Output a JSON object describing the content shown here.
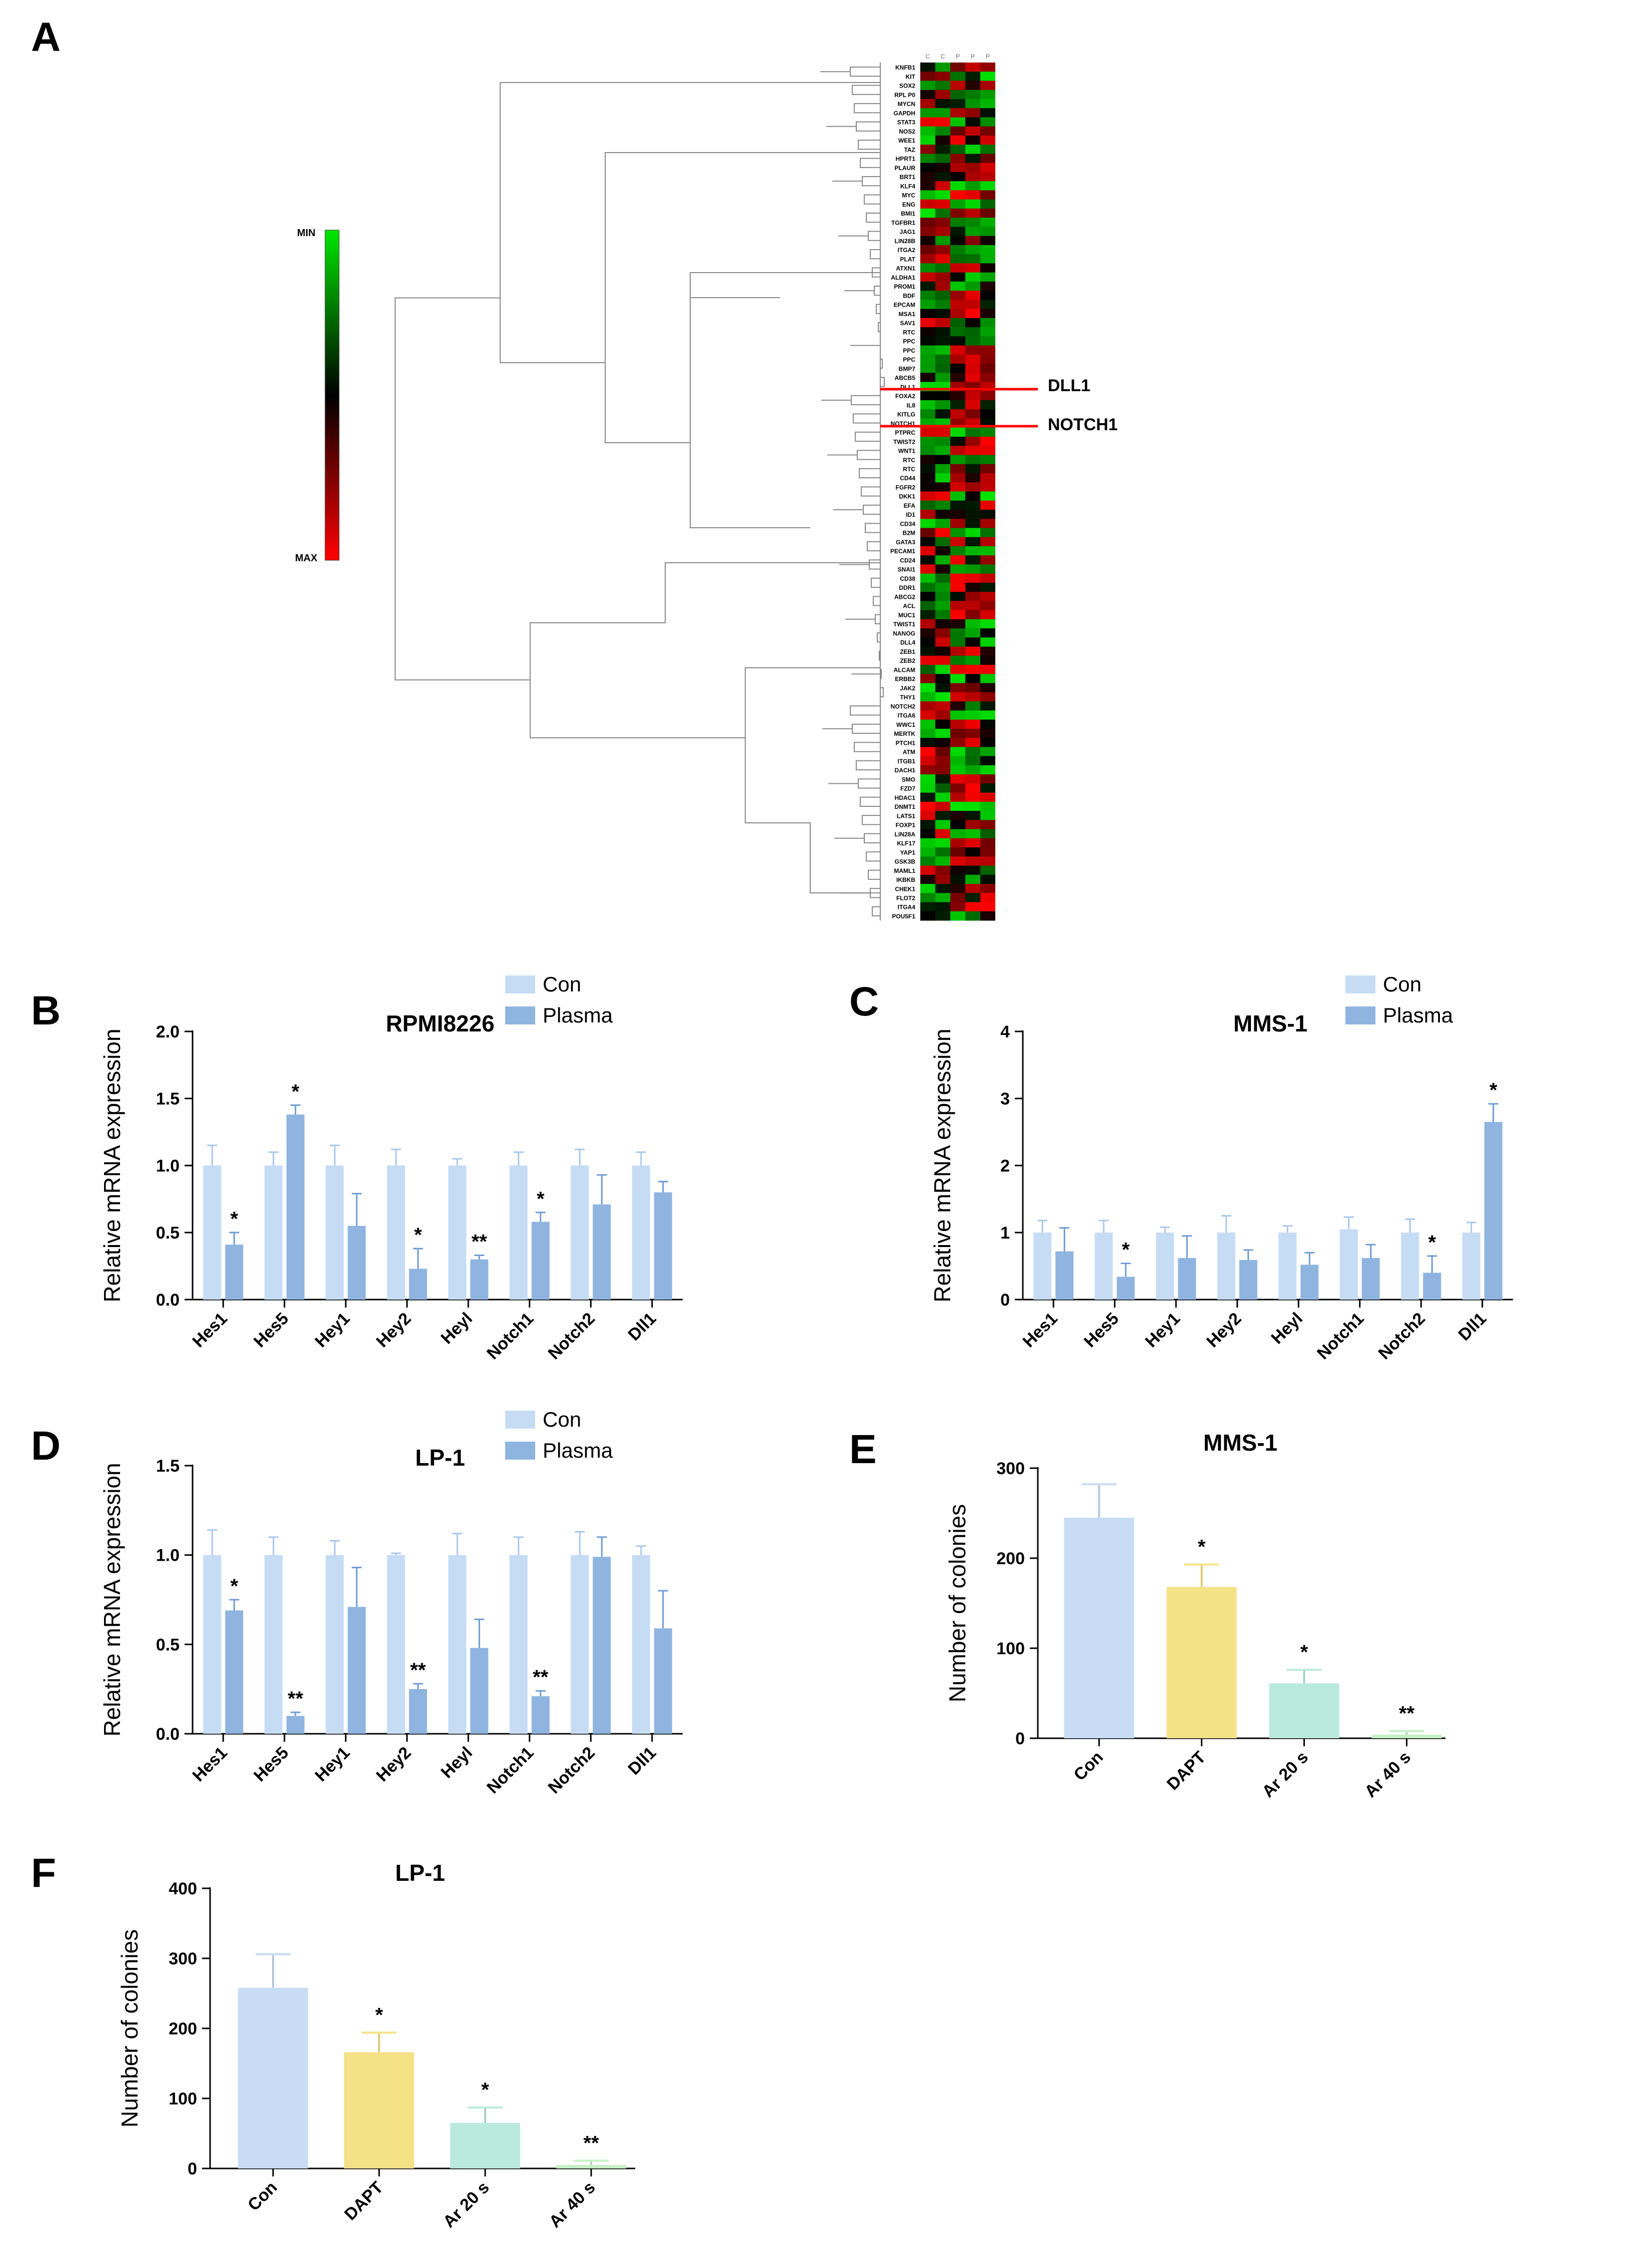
{
  "panels": {
    "A": "A",
    "B": "B",
    "C": "C",
    "D": "D",
    "E": "E",
    "F": "F"
  },
  "heatmap": {
    "scale_min": "MIN",
    "scale_max": "MAX",
    "columns": [
      "C",
      "C",
      "P",
      "P",
      "P"
    ],
    "highlights": [
      "DLL1",
      "NOTCH1"
    ],
    "genes": [
      "KNFB1",
      "KIT",
      "SOX2",
      "RPL P0",
      "MYCN",
      "GAPDH",
      "STAT3",
      "NOS2",
      "WEE1",
      "TAZ",
      "HPRT1",
      "PLAUR",
      "BRT1",
      "KLF4",
      "MYC",
      "ENG",
      "BMI1",
      "TGFBR1",
      "JAG1",
      "LIN28B",
      "ITGA2",
      "PLAT",
      "ATXN1",
      "ALDHA1",
      "PROM1",
      "BDF",
      "EPCAM",
      "MSA1",
      "SAV1",
      "RTC",
      "PPC",
      "PPC",
      "PPC",
      "BMP7",
      "ABCB5",
      "DLL1",
      "FOXA2",
      "IL8",
      "KITLG",
      "NOTCH1",
      "PTPRC",
      "TWIST2",
      "WNT1",
      "RTC",
      "RTC",
      "CD44",
      "FGFR2",
      "DKK1",
      "EFA",
      "ID1",
      "CD34",
      "B2M",
      "GATA3",
      "PECAM1",
      "CD24",
      "SNAI1",
      "CD38",
      "DDR1",
      "ABCG2",
      "ACL",
      "MUC1",
      "TWIST1",
      "NANOG",
      "DLL4",
      "ZEB1",
      "ZEB2",
      "ALCAM",
      "ERBB2",
      "JAK2",
      "THY1",
      "NOTCH2",
      "ITGA6",
      "WWC1",
      "MERTK",
      "PTCH1",
      "ATM",
      "ITGB1",
      "DACH1",
      "SMO",
      "FZD7",
      "HDAC1",
      "DNMT1",
      "LATS1",
      "FOXP1",
      "LIN28A",
      "KLF17",
      "YAP1",
      "GSK3B",
      "MAML1",
      "IKBKB",
      "CHEK1",
      "FLOT2",
      "ITGA4",
      "POU5F1"
    ]
  },
  "chart_data": [
    {
      "id": "B",
      "type": "bar",
      "title": "RPMI8226",
      "ylabel": "Relative mRNA expression",
      "categories": [
        "Hes1",
        "Hes5",
        "Hey1",
        "Hey2",
        "Heyl",
        "Notch1",
        "Notch2",
        "Dll1"
      ],
      "ylim": [
        0,
        2.0
      ],
      "yticks": [
        0.0,
        0.5,
        1.0,
        1.5,
        2.0
      ],
      "ytick_labels": [
        "0.0",
        "0.5",
        "1.0",
        "1.5",
        "2.0"
      ],
      "legend": [
        "Con",
        "Plasma"
      ],
      "legend_position": "top-right",
      "series": [
        {
          "name": "Con",
          "color": "#c6dcf5",
          "values": [
            1.0,
            1.0,
            1.0,
            1.0,
            1.0,
            1.0,
            1.0,
            1.0
          ],
          "errors": [
            0.15,
            0.1,
            0.15,
            0.12,
            0.05,
            0.1,
            0.12,
            0.1
          ]
        },
        {
          "name": "Plasma",
          "color": "#8fb4e0",
          "values": [
            0.41,
            1.38,
            0.55,
            0.23,
            0.3,
            0.58,
            0.71,
            0.8
          ],
          "errors": [
            0.09,
            0.07,
            0.24,
            0.15,
            0.03,
            0.07,
            0.22,
            0.08
          ]
        }
      ],
      "significance": [
        "*",
        "*",
        "",
        "*",
        "**",
        "*",
        "",
        ""
      ]
    },
    {
      "id": "C",
      "type": "bar",
      "title": "MMS-1",
      "ylabel": "Relative mRNA expression",
      "categories": [
        "Hes1",
        "Hes5",
        "Hey1",
        "Hey2",
        "Heyl",
        "Notch1",
        "Notch2",
        "Dll1"
      ],
      "ylim": [
        0,
        4
      ],
      "yticks": [
        0,
        1,
        2,
        3,
        4
      ],
      "ytick_labels": [
        "0",
        "1",
        "2",
        "3",
        "4"
      ],
      "legend": [
        "Con",
        "Plasma"
      ],
      "legend_position": "top-right",
      "series": [
        {
          "name": "Con",
          "color": "#c6dcf5",
          "values": [
            1.0,
            1.0,
            1.0,
            1.0,
            1.0,
            1.05,
            1.0,
            1.0
          ],
          "errors": [
            0.18,
            0.18,
            0.08,
            0.25,
            0.1,
            0.18,
            0.2,
            0.15
          ]
        },
        {
          "name": "Plasma",
          "color": "#8fb4e0",
          "values": [
            0.72,
            0.34,
            0.62,
            0.59,
            0.52,
            0.62,
            0.4,
            2.65
          ],
          "errors": [
            0.35,
            0.2,
            0.33,
            0.15,
            0.18,
            0.2,
            0.25,
            0.27
          ]
        }
      ],
      "significance": [
        "",
        "*",
        "",
        "",
        "",
        "",
        "*",
        "*"
      ]
    },
    {
      "id": "D",
      "type": "bar",
      "title": "LP-1",
      "ylabel": "Relative mRNA expression",
      "categories": [
        "Hes1",
        "Hes5",
        "Hey1",
        "Hey2",
        "Heyl",
        "Notch1",
        "Notch2",
        "Dll1"
      ],
      "ylim": [
        0,
        1.5
      ],
      "yticks": [
        0.0,
        0.5,
        1.0,
        1.5
      ],
      "ytick_labels": [
        "0.0",
        "0.5",
        "1.0",
        "1.5"
      ],
      "legend": [
        "Con",
        "Plasma"
      ],
      "legend_position": "top-right",
      "series": [
        {
          "name": "Con",
          "color": "#c6dcf5",
          "values": [
            1.0,
            1.0,
            1.0,
            1.0,
            1.0,
            1.0,
            1.0,
            1.0
          ],
          "errors": [
            0.14,
            0.1,
            0.08,
            0.01,
            0.12,
            0.1,
            0.13,
            0.05
          ]
        },
        {
          "name": "Plasma",
          "color": "#8fb4e0",
          "values": [
            0.69,
            0.1,
            0.71,
            0.25,
            0.48,
            0.21,
            0.99,
            0.59
          ],
          "errors": [
            0.06,
            0.02,
            0.22,
            0.03,
            0.16,
            0.03,
            0.11,
            0.21
          ]
        }
      ],
      "significance": [
        "*",
        "**",
        "",
        "**",
        "",
        "**",
        "",
        ""
      ]
    },
    {
      "id": "E",
      "type": "bar",
      "title": "MMS-1",
      "ylabel": "Number of colonies",
      "categories": [
        "Con",
        "DAPT",
        "Ar 20 s",
        "Ar 40 s"
      ],
      "ylim": [
        0,
        300
      ],
      "yticks": [
        0,
        100,
        200,
        300
      ],
      "ytick_labels": [
        "0",
        "100",
        "200",
        "300"
      ],
      "series": [
        {
          "name": "colonies",
          "colors": [
            "#c8dcf5",
            "#f5e287",
            "#b9eadb",
            "#c5f0c4"
          ],
          "values": [
            245,
            168,
            61,
            4
          ],
          "errors": [
            37,
            25,
            15,
            4
          ]
        }
      ],
      "significance": [
        "",
        "*",
        "*",
        "**"
      ]
    },
    {
      "id": "F",
      "type": "bar",
      "title": "LP-1",
      "ylabel": "Number of colonies",
      "categories": [
        "Con",
        "DAPT",
        "Ar 20 s",
        "Ar 40 s"
      ],
      "ylim": [
        0,
        400
      ],
      "yticks": [
        0,
        100,
        200,
        300,
        400
      ],
      "ytick_labels": [
        "0",
        "100",
        "200",
        "300",
        "400"
      ],
      "series": [
        {
          "name": "colonies",
          "colors": [
            "#c8dcf5",
            "#f5e287",
            "#b9eadb",
            "#c5f0c4"
          ],
          "values": [
            258,
            166,
            65,
            5
          ],
          "errors": [
            48,
            28,
            22,
            6
          ]
        }
      ],
      "significance": [
        "",
        "*",
        "*",
        "**"
      ]
    }
  ]
}
